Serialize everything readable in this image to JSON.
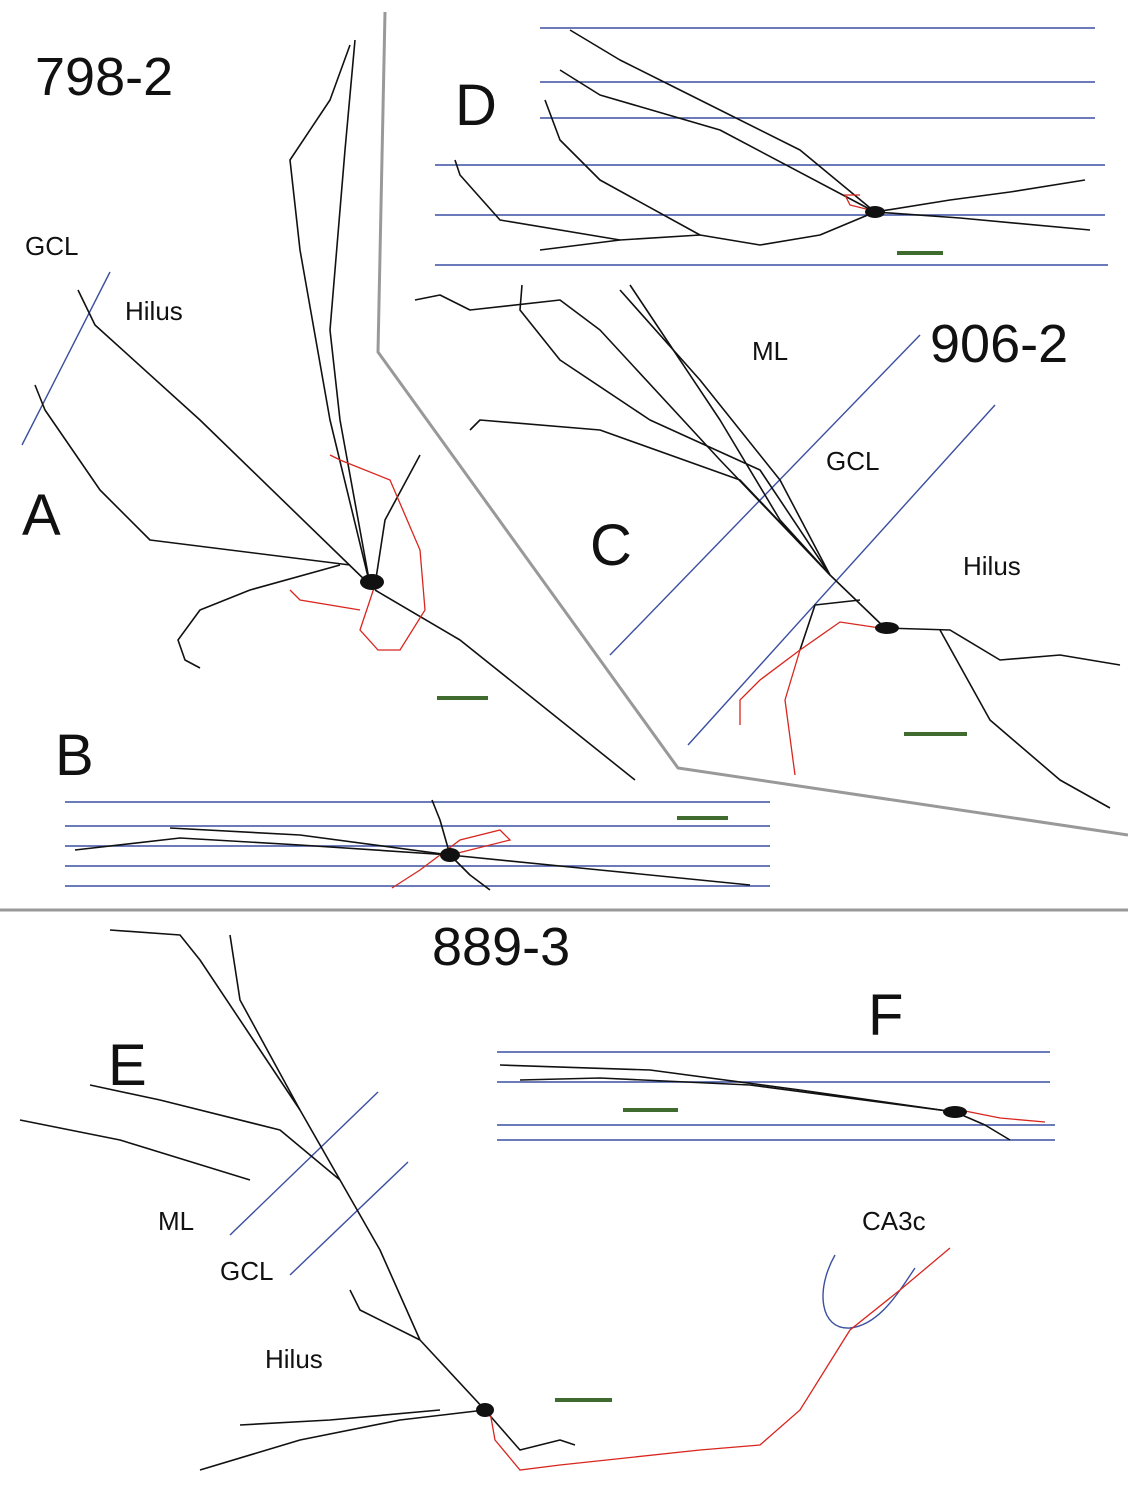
{
  "groups": [
    {
      "cell_id": "798-2",
      "panels": [
        "A",
        "B"
      ],
      "regions": [
        "GCL",
        "Hilus"
      ]
    },
    {
      "cell_id": "906-2",
      "panels": [
        "C",
        "D"
      ],
      "regions": [
        "ML",
        "GCL",
        "Hilus"
      ]
    },
    {
      "cell_id": "889-3",
      "panels": [
        "E",
        "F"
      ],
      "regions": [
        "ML",
        "GCL",
        "Hilus",
        "CA3c"
      ]
    }
  ]
}
